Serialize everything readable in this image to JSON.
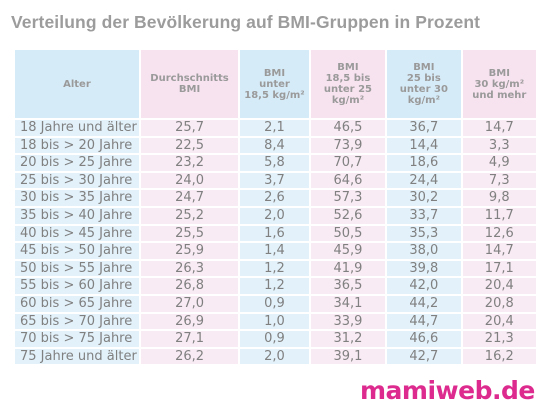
{
  "title": "Verteilung der Bevölkerung auf BMI-Gruppen in Prozent",
  "table": {
    "headers": {
      "alter": "Alter",
      "avg": [
        "Durchschnitts",
        "BMI"
      ],
      "g1": [
        "BMI",
        "unter",
        "18,5 kg/m²"
      ],
      "g2": [
        "BMI",
        "18,5 bis",
        "unter 25",
        "kg/m²"
      ],
      "g3": [
        "BMI",
        "25 bis",
        "unter 30",
        "kg/m²"
      ],
      "g4": [
        "BMI",
        "30 kg/m²",
        "und mehr"
      ]
    },
    "rows": [
      [
        "18 Jahre und älter",
        "25,7",
        "2,1",
        "46,5",
        "36,7",
        "14,7"
      ],
      [
        "18 bis > 20 Jahre",
        "22,5",
        "8,4",
        "73,9",
        "14,4",
        "3,3"
      ],
      [
        "20 bis > 25 Jahre",
        "23,2",
        "5,8",
        "70,7",
        "18,6",
        "4,9"
      ],
      [
        "25 bis > 30 Jahre",
        "24,0",
        "3,7",
        "64,6",
        "24,4",
        "7,3"
      ],
      [
        "30 bis > 35 Jahre",
        "24,7",
        "2,6",
        "57,3",
        "30,2",
        "9,8"
      ],
      [
        "35 bis > 40 Jahre",
        "25,2",
        "2,0",
        "52,6",
        "33,7",
        "11,7"
      ],
      [
        "40 bis > 45 Jahre",
        "25,5",
        "1,6",
        "50,5",
        "35,3",
        "12,6"
      ],
      [
        "45 bis > 50 Jahre",
        "25,9",
        "1,4",
        "45,9",
        "38,0",
        "14,7"
      ],
      [
        "50 bis > 55 Jahre",
        "26,3",
        "1,2",
        "41,9",
        "39,8",
        "17,1"
      ],
      [
        "55 bis > 60 Jahre",
        "26,8",
        "1,2",
        "36,5",
        "42,0",
        "20,4"
      ],
      [
        "60 bis > 65 Jahre",
        "27,0",
        "0,9",
        "34,1",
        "44,2",
        "20,8"
      ],
      [
        "65 bis > 70 Jahre",
        "26,9",
        "1,0",
        "33,9",
        "44,7",
        "20,4"
      ],
      [
        "70 bis > 75 Jahre",
        "27,1",
        "0,9",
        "31,2",
        "46,6",
        "21,3"
      ],
      [
        "75 Jahre und älter",
        "26,2",
        "2,0",
        "39,1",
        "42,7",
        "16,2"
      ]
    ]
  },
  "logo": "mamiweb.de",
  "colors": {
    "header_blue": "#d6ebf8",
    "header_pink": "#f7e2ef",
    "cell_blue": "#e2f1fa",
    "cell_pink": "#f9ebf4",
    "logo": "#dd2a8e"
  }
}
